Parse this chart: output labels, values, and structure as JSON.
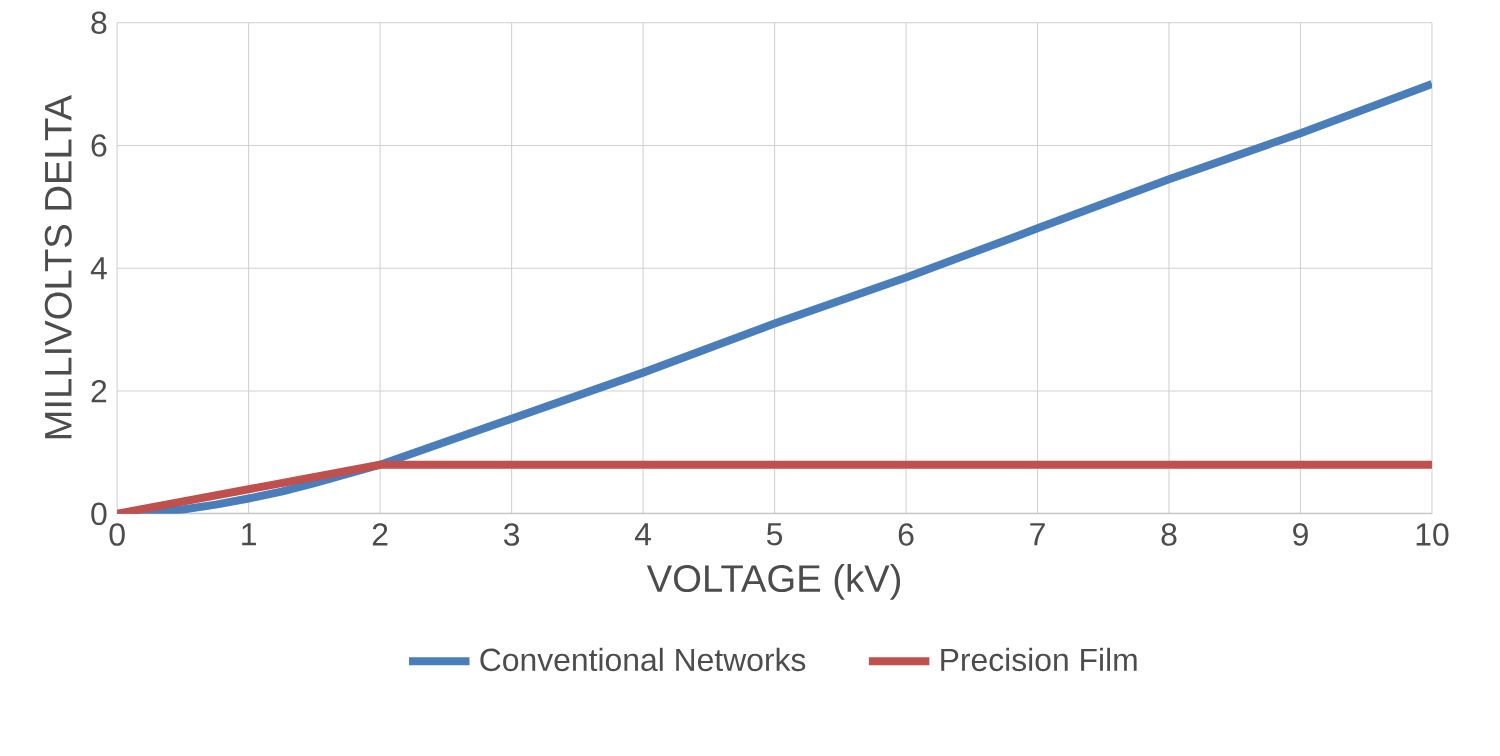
{
  "chart_data": {
    "type": "line",
    "xlabel": "VOLTAGE (kV)",
    "ylabel": "MILLIVOLTS DELTA",
    "series": [
      {
        "name": "Conventional Networks",
        "color": "#4a7ebb",
        "x": [
          0,
          0.25,
          0.5,
          0.75,
          1,
          1.25,
          1.5,
          1.75,
          2,
          3,
          4,
          5,
          6,
          7,
          8,
          9,
          10
        ],
        "values": [
          0,
          0.02,
          0.07,
          0.15,
          0.25,
          0.36,
          0.5,
          0.65,
          0.8,
          1.55,
          2.3,
          3.1,
          3.85,
          4.65,
          5.45,
          6.2,
          7
        ]
      },
      {
        "name": "Precision Film",
        "color": "#c0504d",
        "x": [
          0,
          2,
          10
        ],
        "values": [
          0,
          0.8,
          0.8
        ]
      }
    ],
    "xlim": [
      0,
      10
    ],
    "xticks": [
      0,
      1,
      2,
      3,
      4,
      5,
      6,
      7,
      8,
      9,
      10
    ],
    "ylim": [
      0,
      8
    ],
    "yticks": [
      0,
      2,
      4,
      6,
      8
    ],
    "grid": true,
    "legend": "bottom",
    "marker": "none",
    "line_style": "solid"
  }
}
